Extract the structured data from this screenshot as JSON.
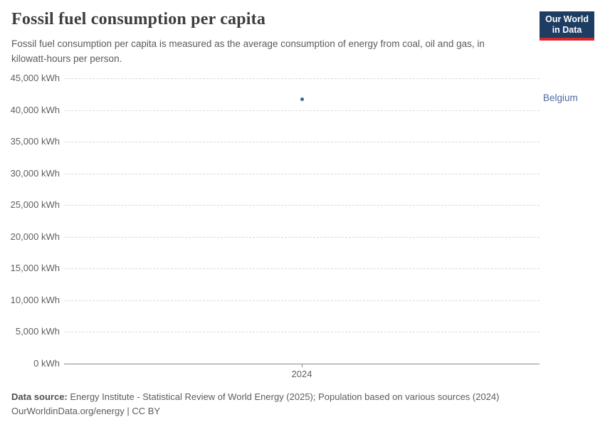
{
  "header": {
    "title": "Fossil fuel consumption per capita",
    "subtitle": "Fossil fuel consumption per capita is measured as the average consumption of energy from coal, oil and gas, in kilowatt-hours per person.",
    "logo": {
      "line1": "Our World",
      "line2": "in Data",
      "bg_color": "#1d3d63",
      "accent_color": "#d7262c"
    }
  },
  "chart_data": {
    "type": "scatter",
    "title": "Fossil fuel consumption per capita",
    "series": [
      {
        "name": "Belgium",
        "color": "#4c6a9c",
        "x": [
          2024
        ],
        "values": [
          41700
        ]
      }
    ],
    "x_ticks": [
      "2024"
    ],
    "xlabel": "",
    "ylabel": "",
    "y_axis": {
      "min": 0,
      "max": 45000,
      "step": 5000,
      "unit": "kWh"
    },
    "grid": "dashed-horizontal",
    "legend_position": "right-of-point",
    "colors": {
      "gridline": "#d9d9d9",
      "axis": "#8a8a8a",
      "tick_text": "#606060",
      "point": "#3d6493",
      "entity_label": "#4c6a9c"
    }
  },
  "footer": {
    "data_source_label": "Data source:",
    "data_source_text": " Energy Institute - Statistical Review of World Energy (2025); Population based on various sources (2024)",
    "url": "OurWorldinData.org/energy",
    "separator": " | ",
    "license": "CC BY"
  }
}
